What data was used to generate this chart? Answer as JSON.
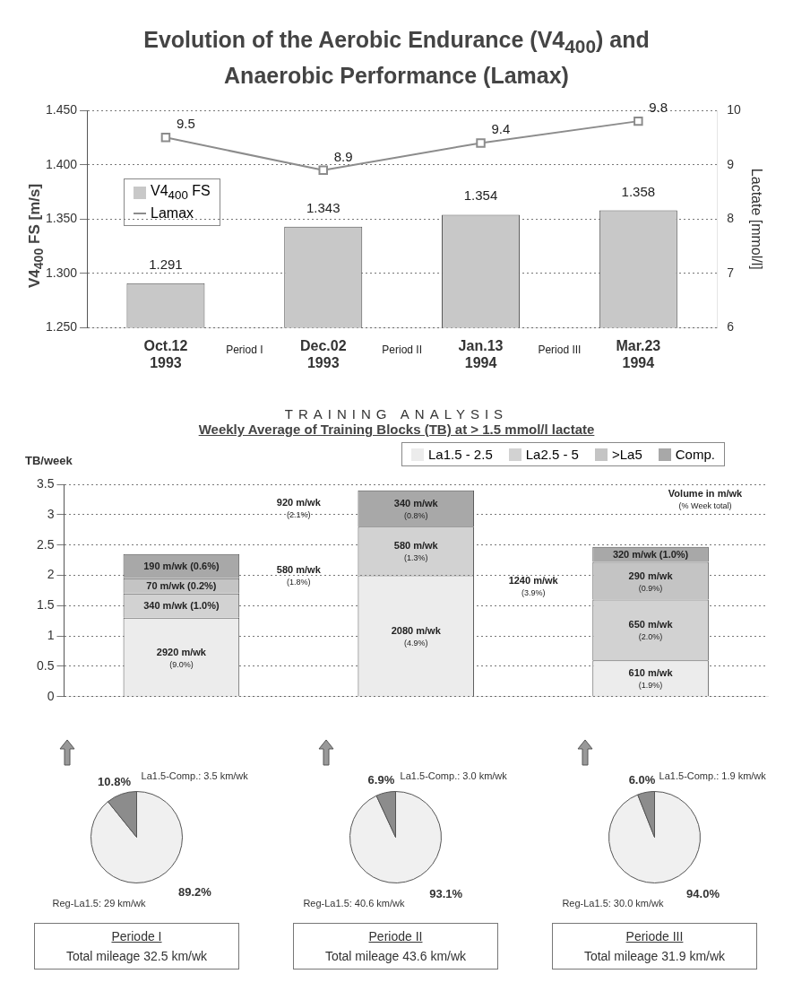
{
  "chart_data": [
    {
      "type": "bar",
      "title": "Evolution of the Aerobic Endurance (V4$_{400}$) and Anaerobic Performance (Lamax)",
      "ylabel": "V4$_{400}$ FS [m/s]",
      "y2label": "Lactate [mmol/l]",
      "categories": [
        "Oct.12 1993",
        "Dec.02 1993",
        "Jan.13 1994",
        "Mar.23 1994"
      ],
      "series": [
        {
          "name": "V4$_{400}$ FS",
          "type": "bar",
          "color": "#c8c8c8",
          "values": [
            1.291,
            1.343,
            1.354,
            1.358
          ]
        },
        {
          "name": "Lamax",
          "type": "line",
          "axis": "y2",
          "color": "#8c8c8c",
          "values": [
            9.5,
            8.9,
            9.4,
            9.8
          ]
        }
      ],
      "ylim": [
        1.25,
        1.45
      ],
      "yticks": [
        {
          "value": 1.25,
          "label": "1.250"
        },
        {
          "value": 1.3,
          "label": "1.300"
        },
        {
          "value": 1.35,
          "label": "1.350"
        },
        {
          "value": 1.4,
          "label": "1.400"
        },
        {
          "value": 1.45,
          "label": "1.450"
        }
      ],
      "y2lim": [
        6,
        10
      ],
      "y2ticks": [
        6,
        7,
        8,
        9,
        10
      ],
      "grid": "y",
      "legend": "top left",
      "marker": "square",
      "data_labels": true,
      "annotations": [
        "Period I",
        "Period II",
        "Period III"
      ]
    },
    {
      "type": "bar",
      "stacked": true,
      "title": "TRAINING ANALYSIS",
      "subtitle": "Weekly Average of Training Blocks (TB) at > 1.5 mmol/l lactate",
      "ylabel": "TB/week",
      "categories": [
        null,
        null,
        null
      ],
      "series": [
        {
          "name": "La1.5 - 2.5",
          "color": "#ececec",
          "values": [
            1.3,
            2.0,
            0.6
          ]
        },
        {
          "name": "La2.5 - 5",
          "color": "#d2d2d2",
          "values": [
            0.4,
            0.8,
            1.0
          ]
        },
        {
          "name": ">La5",
          "color": "#c4c4c4",
          "values": [
            0.25,
            null,
            0.62
          ]
        },
        {
          "name": "Comp.",
          "color": "#a8a8a8",
          "values": [
            0.4,
            0.6,
            0.25
          ]
        }
      ],
      "ylim": [
        0,
        3.5
      ],
      "yticks": [
        0,
        0.5,
        1,
        1.5,
        2,
        2.5,
        3,
        3.5
      ],
      "grid": "y",
      "legend": "top",
      "annotations": [
        "Volume in m/wk (% Week total)",
        "580 m/wk (1.8%)",
        "920 m/wk (2.1%)",
        "1240 m/wk (3.9%)",
        "2920 m/wk (9.0%)",
        "340 m/wk (1.0%)",
        "70 m/wk (0.2%)",
        "190 m/wk (0.6%)",
        "2080 m/wk (4.9%)",
        "580 m/wk (1.3%)",
        "340 m/wk (0.8%)",
        "610 m/wk (1.9%)",
        "650 m/wk (2.0%)",
        "290 m/wk (0.9%)",
        "320 m/wk (1.0%)"
      ]
    },
    {
      "type": "pie",
      "title": "Periode I",
      "categories": [
        "Reg-La1.5: 29 km/wk",
        "La1.5-Comp.: 3.5 km/wk"
      ],
      "values": [
        89.2,
        10.8
      ],
      "colors": [
        "#f0f0f0",
        "#8c8c8c"
      ],
      "value_labels": [
        "89.2%",
        "10.8%"
      ],
      "annotations": [
        "Total mileage 32.5 km/wk"
      ]
    },
    {
      "type": "pie",
      "title": "Periode II",
      "categories": [
        "Reg-La1.5: 40.6 km/wk",
        "La1.5-Comp.: 3.0 km/wk"
      ],
      "values": [
        93.1,
        6.9
      ],
      "colors": [
        "#f0f0f0",
        "#8c8c8c"
      ],
      "value_labels": [
        "93.1%",
        "6.9%"
      ],
      "annotations": [
        "Total mileage 43.6 km/wk"
      ]
    },
    {
      "type": "pie",
      "title": "Periode III",
      "categories": [
        "Reg-La1.5: 30.0 km/wk",
        "La1.5-Comp.: 1.9 km/wk"
      ],
      "values": [
        94.0,
        6.0
      ],
      "colors": [
        "#f0f0f0",
        "#8c8c8c"
      ],
      "value_labels": [
        "94.0%",
        "6.0%"
      ],
      "annotations": [
        "Total mileage 31.9 km/wk"
      ]
    }
  ]
}
